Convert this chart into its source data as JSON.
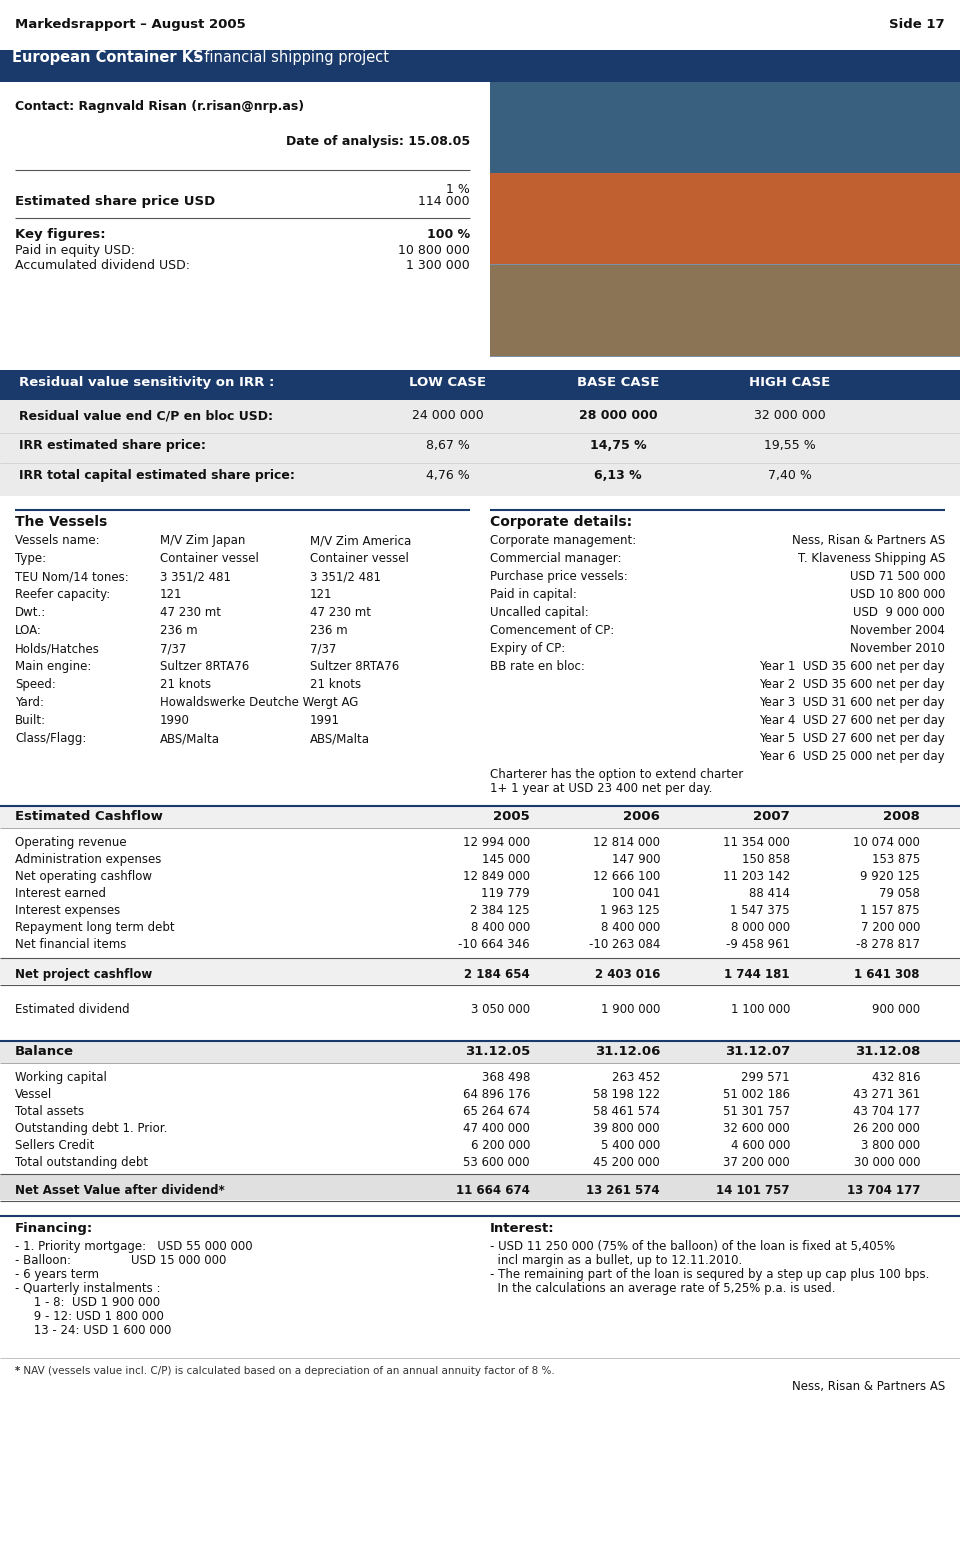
{
  "header_left": "Markedsrapport – August 2005",
  "header_right": "Side 17",
  "title_bold": "European Container KS",
  "title_rest": "  - financial shipping project",
  "title_bg": "#1a3a6b",
  "contact": "Contact: Ragnvald Risan (r.risan@nrp.as)",
  "date_analysis": "Date of analysis: 15.08.05",
  "share_pct": "1 %",
  "share_label": "Estimated share price USD",
  "share_value": "114 000",
  "key_figures_label": "Key figures:",
  "key_figures_pct": "100 %",
  "paid_equity_label": "Paid in equity USD:",
  "paid_equity_value": "10 800 000",
  "accum_div_label": "Accumulated dividend USD:",
  "accum_div_value": "1 300 000",
  "sensitivity_header": "Residual value sensitivity on IRR :",
  "col_low": "LOW CASE",
  "col_base": "BASE CASE",
  "col_high": "HIGH CASE",
  "row1_label": "Residual value end C/P en bloc USD:",
  "row1_low": "24 000 000",
  "row1_base": "28 000 000",
  "row1_high": "32 000 000",
  "row2_label": "IRR estimated share price:",
  "row2_low": "8,67 %",
  "row2_base": "14,75 %",
  "row2_high": "19,55 %",
  "row3_label": "IRR total capital estimated share price:",
  "row3_low": "4,76 %",
  "row3_base": "6,13 %",
  "row3_high": "7,40 %",
  "vessels_header": "The Vessels",
  "vessels_name_label": "Vessels name:",
  "vessels_name_v1": "M/V Zim Japan",
  "vessels_name_v2": "M/V Zim America",
  "corp_header": "Corporate details:",
  "corp_mgmt_label": "Corporate management:",
  "corp_mgmt_value": "Ness, Risan & Partners AS",
  "comm_mgr_label": "Commercial manager:",
  "comm_mgr_value": "T. Klaveness Shipping AS",
  "type_label": "Type:",
  "type_v1": "Container vessel",
  "type_v2": "Container vessel",
  "teu_label": "TEU Nom/14 tones:",
  "teu_v1": "3 351/2 481",
  "teu_v2": "3 351/2 481",
  "purch_label": "Purchase price vessels:",
  "purch_value": "USD 71 500 000",
  "reefer_label": "Reefer capacity:",
  "reefer_v1": "121",
  "reefer_v2": "121",
  "paid_cap_label": "Paid in capital:",
  "paid_cap_value": "USD 10 800 000",
  "dwt_label": "Dwt.:",
  "dwt_v1": "47 230 mt",
  "dwt_v2": "47 230 mt",
  "uncalled_label": "Uncalled capital:",
  "uncalled_value": "USD  9 000 000",
  "loa_label": "LOA:",
  "loa_v1": "236 m",
  "loa_v2": "236 m",
  "comm_cp_label": "Comencement of CP:",
  "comm_cp_value": "November 2004",
  "holds_label": "Holds/Hatches",
  "holds_v1": "7/37",
  "holds_v2": "7/37",
  "expiry_label": "Expiry of CP:",
  "expiry_value": "November 2010",
  "engine_label": "Main engine:",
  "engine_v1": "Sultzer 8RTA76",
  "engine_v2": "Sultzer 8RTA76",
  "bb_label": "BB rate en bloc:",
  "bb_y1": "Year 1  USD 35 600 net per day",
  "bb_y2": "Year 2  USD 35 600 net per day",
  "bb_y3": "Year 3  USD 31 600 net per day",
  "bb_y4": "Year 4  USD 27 600 net per day",
  "bb_y5": "Year 5  USD 27 600 net per day",
  "bb_y6": "Year 6  USD 25 000 net per day",
  "speed_label": "Speed:",
  "speed_v1": "21 knots",
  "speed_v2": "21 knots",
  "charter_note": "Charterer has the option to extend charter",
  "charter_note2": "1+ 1 year at USD 23 400 net per day.",
  "yard_label": "Yard:",
  "yard_v1": "Howaldswerke Deutche Wergt AG",
  "built_label": "Built:",
  "built_v1": "1990",
  "built_v2": "1991",
  "class_label": "Class/Flagg:",
  "class_v1": "ABS/Malta",
  "class_v2": "ABS/Malta",
  "cashflow_header": "Estimated Cashflow",
  "cf_years": [
    "2005",
    "2006",
    "2007",
    "2008"
  ],
  "cf_op_rev_label": "Operating revenue",
  "cf_op_rev": [
    "12 994 000",
    "12 814 000",
    "11 354 000",
    "10 074 000"
  ],
  "cf_admin_label": "Administration expenses",
  "cf_admin": [
    "145 000",
    "147 900",
    "150 858",
    "153 875"
  ],
  "cf_net_op_label": "Net operating cashflow",
  "cf_net_op": [
    "12 849 000",
    "12 666 100",
    "11 203 142",
    "9 920 125"
  ],
  "cf_int_earn_label": "Interest earned",
  "cf_int_earn": [
    "119 779",
    "100 041",
    "88 414",
    "79 058"
  ],
  "cf_int_exp_label": "Interest expenses",
  "cf_int_exp": [
    "2 384 125",
    "1 963 125",
    "1 547 375",
    "1 157 875"
  ],
  "cf_repay_label": "Repayment long term debt",
  "cf_repay": [
    "8 400 000",
    "8 400 000",
    "8 000 000",
    "7 200 000"
  ],
  "cf_net_fin_label": "Net financial items",
  "cf_net_fin": [
    "-10 664 346",
    "-10 263 084",
    "-9 458 961",
    "-8 278 817"
  ],
  "cf_net_proj_label": "Net project cashflow",
  "cf_net_proj": [
    "2 184 654",
    "2 403 016",
    "1 744 181",
    "1 641 308"
  ],
  "cf_est_div_label": "Estimated dividend",
  "cf_est_div": [
    "3 050 000",
    "1 900 000",
    "1 100 000",
    "900 000"
  ],
  "balance_header": "Balance",
  "bal_years": [
    "31.12.05",
    "31.12.06",
    "31.12.07",
    "31.12.08"
  ],
  "bal_wc_label": "Working capital",
  "bal_wc": [
    "368 498",
    "263 452",
    "299 571",
    "432 816"
  ],
  "bal_vessel_label": "Vessel",
  "bal_vessel": [
    "64 896 176",
    "58 198 122",
    "51 002 186",
    "43 271 361"
  ],
  "bal_assets_label": "Total assets",
  "bal_assets": [
    "65 264 674",
    "58 461 574",
    "51 301 757",
    "43 704 177"
  ],
  "bal_debt_label": "Outstanding debt 1. Prior.",
  "bal_debt": [
    "47 400 000",
    "39 800 000",
    "32 600 000",
    "26 200 000"
  ],
  "bal_sellers_label": "Sellers Credit",
  "bal_sellers": [
    "6 200 000",
    "5 400 000",
    "4 600 000",
    "3 800 000"
  ],
  "bal_total_debt_label": "Total outstanding debt",
  "bal_total_debt": [
    "53 600 000",
    "45 200 000",
    "37 200 000",
    "30 000 000"
  ],
  "nav_label": "Net Asset Value after dividend*",
  "nav_values": [
    "11 664 674",
    "13 261 574",
    "14 101 757",
    "13 704 177"
  ],
  "financing_header": "Financing:",
  "fin_lines": [
    "- 1. Priority mortgage:   USD 55 000 000",
    "- Balloon:                USD 15 000 000",
    "- 6 years term",
    "- Quarterly instalments :",
    "     1 - 8:  USD 1 900 000",
    "     9 - 12: USD 1 800 000",
    "     13 - 24: USD 1 600 000"
  ],
  "interest_header": "Interest:",
  "int_lines": [
    "- USD 11 250 000 (75% of the balloon) of the loan is fixed at 5,405%",
    "  incl margin as a bullet, up to 12.11.2010.",
    "- The remaining part of the loan is sequred by a step up cap plus 100 bps.",
    "  In the calculations an average rate of 5,25% p.a. is used."
  ],
  "footnote": "* NAV (vessels value incl. C/P) is calculated based on a depreciation of an annual annuity factor of 8 %.",
  "footer_right": "Ness, Risan & Partners AS",
  "bg_color": "#ffffff",
  "table_header_bg": "#1a3a6b",
  "sensitivity_bg": "#e8e8e8",
  "cashflow_bg": "#f0f0f0",
  "balance_bg": "#e8e8e8",
  "nav_bg": "#d0d0d0"
}
